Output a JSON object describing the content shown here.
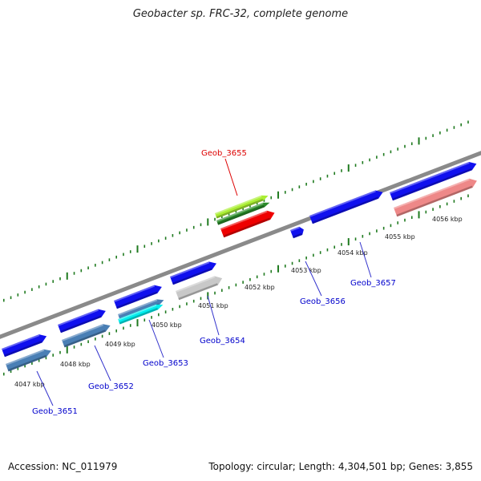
{
  "title": "Geobacter sp. FRC-32, complete genome",
  "footer": {
    "accession": "Accession: NC_011979",
    "topology": "Topology: circular; Length: 4,304,501 bp; Genes: 3,855"
  },
  "colors": {
    "backbone": "#8a8a8a",
    "tick": "#1f7a1f",
    "label_default": "#0000cc",
    "label_highlight": "#dd0000",
    "leader_default": "#3333cc",
    "leader_highlight": "#dd0000"
  },
  "kbp_labels": [
    "4047 kbp",
    "4048 kbp",
    "4049 kbp",
    "4050 kbp",
    "4051 kbp",
    "4052 kbp",
    "4053 kbp",
    "4054 kbp",
    "4055 kbp",
    "4056 kbp"
  ],
  "genes": [
    {
      "id": "Geob_3651",
      "label": "Geob_3651",
      "highlight": false
    },
    {
      "id": "Geob_3652",
      "label": "Geob_3652",
      "highlight": false
    },
    {
      "id": "Geob_3653",
      "label": "Geob_3653",
      "highlight": false
    },
    {
      "id": "Geob_3654",
      "label": "Geob_3654",
      "highlight": false
    },
    {
      "id": "Geob_3655",
      "label": "Geob_3655",
      "highlight": true
    },
    {
      "id": "Geob_3656",
      "label": "Geob_3656",
      "highlight": false
    },
    {
      "id": "Geob_3657",
      "label": "Geob_3657",
      "highlight": false
    }
  ],
  "features": [
    {
      "name": "feature-blue-1",
      "color": "#1010ee"
    },
    {
      "name": "feature-blue-2",
      "color": "#1010ee"
    },
    {
      "name": "feature-blue-3",
      "color": "#1010ee"
    },
    {
      "name": "feature-blue-4",
      "color": "#1010ee"
    },
    {
      "name": "feature-blue-5",
      "color": "#1010ee"
    },
    {
      "name": "feature-blue-6",
      "color": "#1010ee"
    },
    {
      "name": "feature-blue-7",
      "color": "#1010ee"
    },
    {
      "name": "feature-steelblue-1",
      "color": "#4a7fb5"
    },
    {
      "name": "feature-steelblue-2",
      "color": "#4a7fb5"
    },
    {
      "name": "feature-steelblue-3",
      "color": "#4a7fb5"
    },
    {
      "name": "feature-cyan",
      "color": "#00eeee"
    },
    {
      "name": "feature-grey",
      "color": "#c8c8c8"
    },
    {
      "name": "feature-pink",
      "color": "#ee8888"
    },
    {
      "name": "feature-yellowgreen",
      "color": "#aaee33"
    },
    {
      "name": "feature-darkgreen",
      "color": "#2a8a2a"
    },
    {
      "name": "feature-red",
      "color": "#ee0000"
    }
  ]
}
